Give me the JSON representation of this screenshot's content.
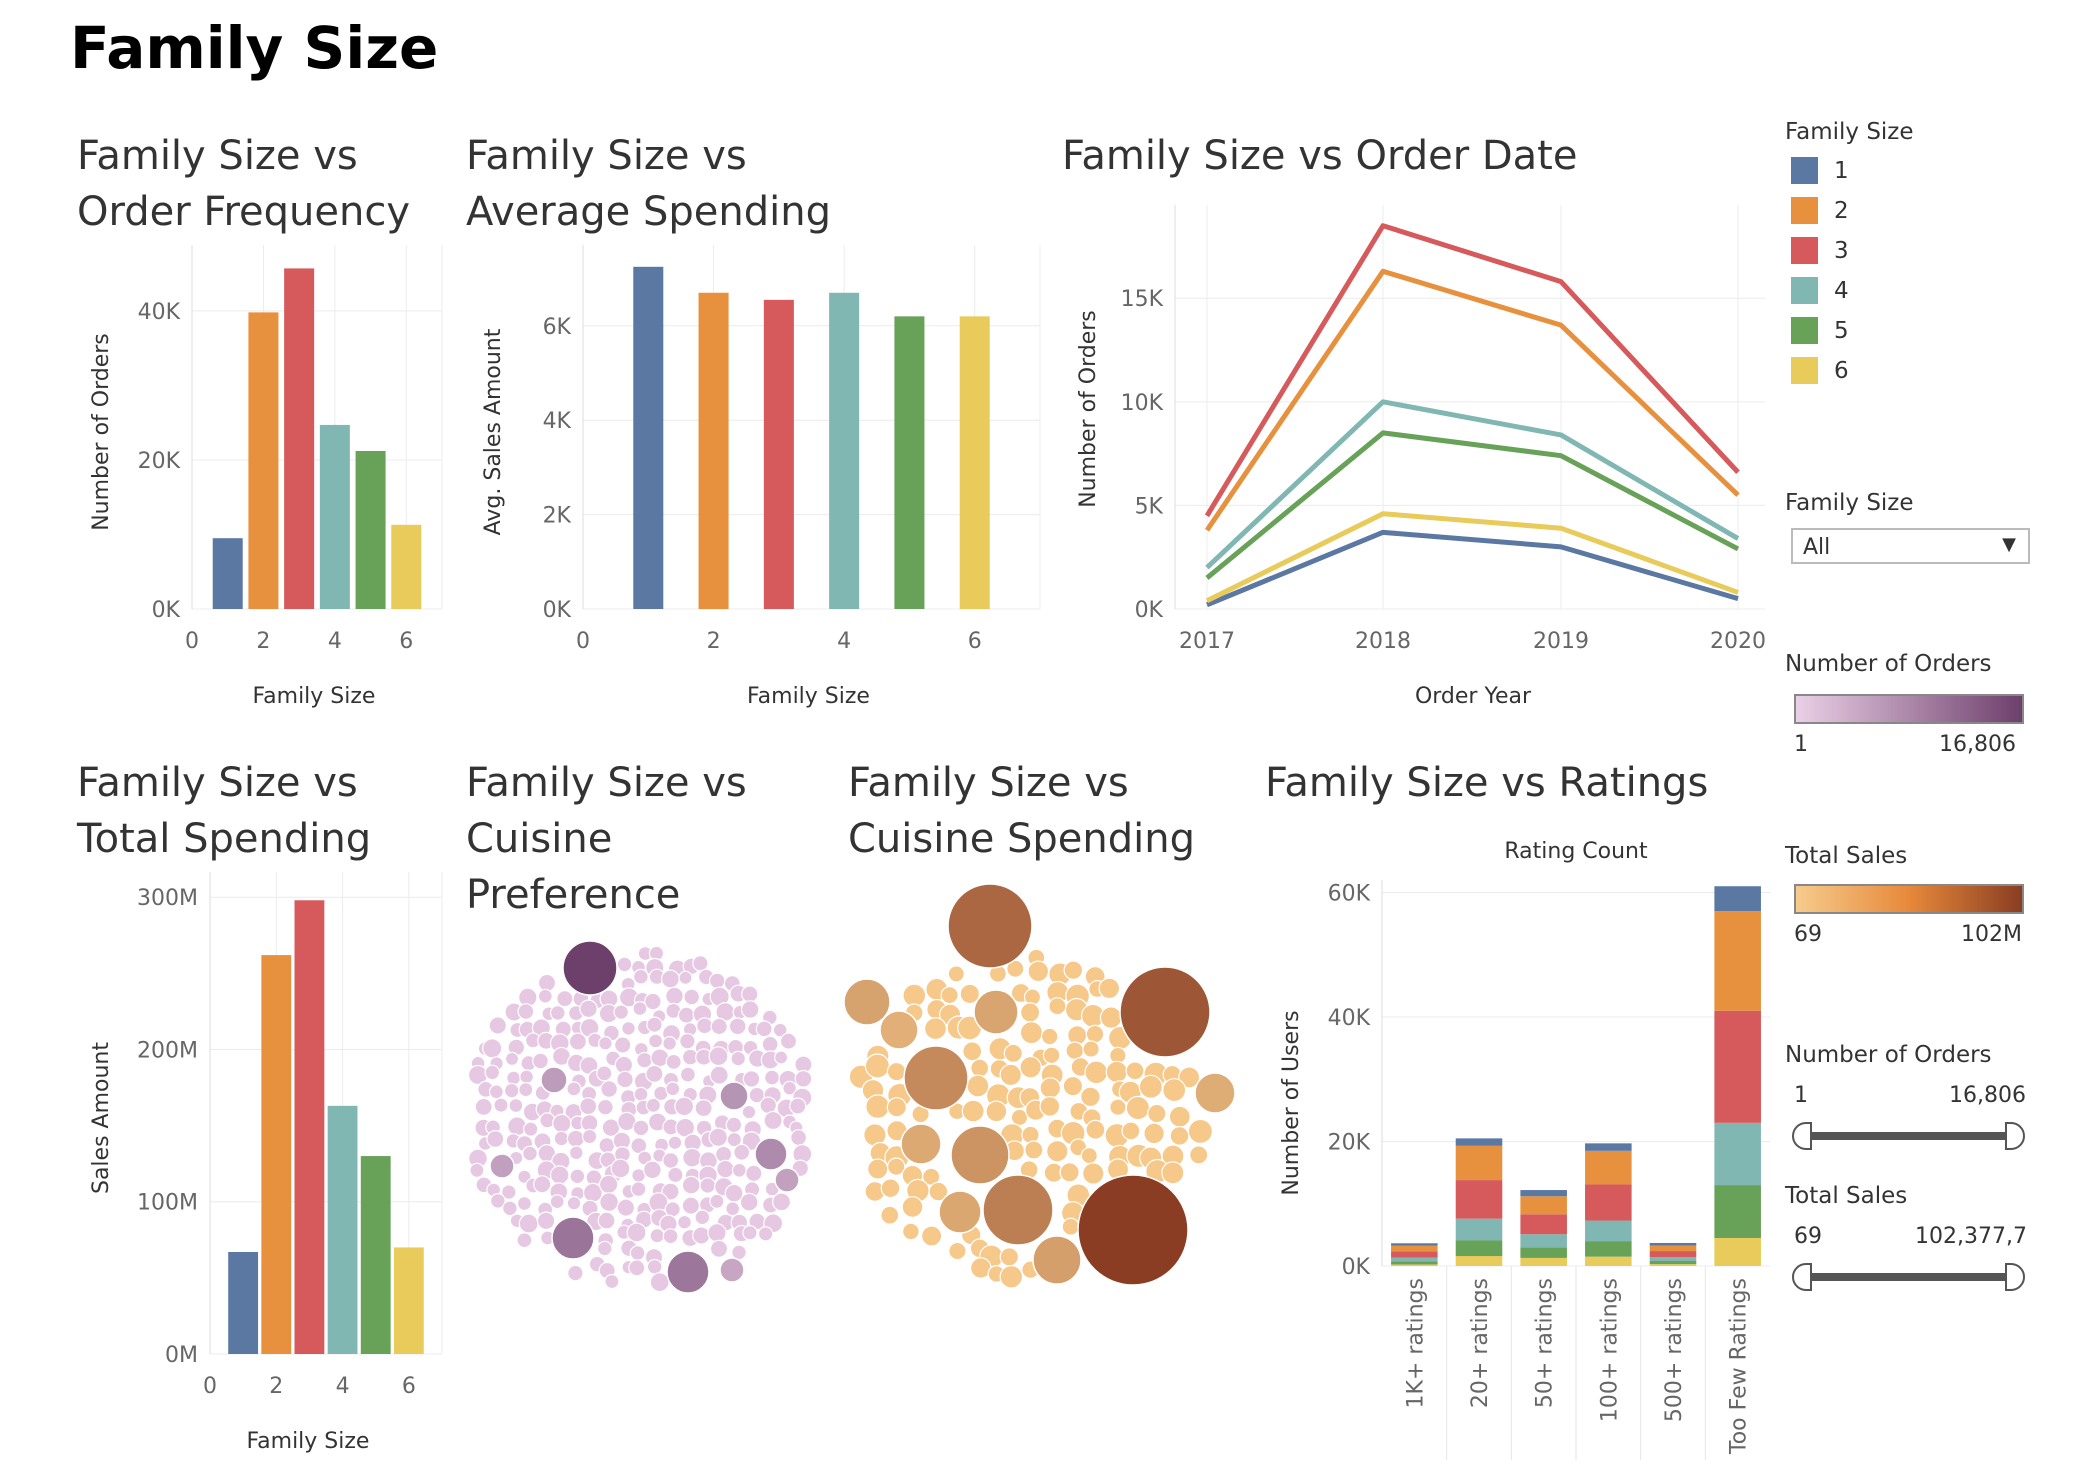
{
  "dashboard_title": "Family Size",
  "colors": {
    "fs1": "#5b78a3",
    "fs2": "#e7913e",
    "fs3": "#d65a5b",
    "fs4": "#81b7b3",
    "fs5": "#68a158",
    "fs6": "#e8cb5a",
    "grid": "#ececec",
    "axis_text": "#666666"
  },
  "legend": {
    "title": "Family Size",
    "items": [
      "1",
      "2",
      "3",
      "4",
      "5",
      "6"
    ]
  },
  "filter": {
    "title": "Family Size",
    "selected": "All",
    "icon": "chevron-down-icon"
  },
  "num_orders_legend": {
    "title": "Number of Orders",
    "min": "1",
    "max": "16,806"
  },
  "total_sales_legend": {
    "title": "Total Sales",
    "min": "69",
    "max": "102M"
  },
  "num_orders_slider": {
    "title": "Number of Orders",
    "min": "1",
    "max": "16,806"
  },
  "total_sales_slider": {
    "title": "Total Sales",
    "min": "69",
    "max": "102,377,7․"
  },
  "chart_data": [
    {
      "id": "order_frequency",
      "type": "bar",
      "title": "Family Size vs Order Frequency",
      "xlabel": "Family Size",
      "ylabel": "Number of Orders",
      "x": [
        1,
        2,
        3,
        4,
        5,
        6
      ],
      "values": [
        9500,
        39800,
        45700,
        24700,
        21200,
        11300
      ],
      "xlim": [
        0,
        7
      ],
      "ylim": [
        0,
        47500
      ],
      "xticks": [
        "0",
        "2",
        "4",
        "6"
      ],
      "yticks": [
        "0K",
        "20K",
        "40K"
      ],
      "grid": true
    },
    {
      "id": "average_spending",
      "type": "bar",
      "title": "Family Size vs Average Spending",
      "xlabel": "Family Size",
      "ylabel": "Avg. Sales Amount",
      "x": [
        1,
        2,
        3,
        4,
        5,
        6
      ],
      "values": [
        7250,
        6700,
        6550,
        6700,
        6200,
        6200
      ],
      "xlim": [
        0,
        7
      ],
      "ylim": [
        0,
        7500
      ],
      "xticks": [
        "0",
        "2",
        "4",
        "6"
      ],
      "yticks": [
        "0K",
        "2K",
        "4K",
        "6K"
      ],
      "grid": true
    },
    {
      "id": "order_date",
      "type": "line",
      "title": "Family Size vs Order Date",
      "xlabel": "Order Year",
      "ylabel": "Number of Orders",
      "x": [
        "2017",
        "2018",
        "2019",
        "2020"
      ],
      "series": [
        {
          "name": "1",
          "values": [
            200,
            3700,
            3000,
            500
          ]
        },
        {
          "name": "2",
          "values": [
            3800,
            16300,
            13700,
            5500
          ]
        },
        {
          "name": "3",
          "values": [
            4500,
            18500,
            15800,
            6600
          ]
        },
        {
          "name": "4",
          "values": [
            2000,
            10000,
            8400,
            3400
          ]
        },
        {
          "name": "5",
          "values": [
            1500,
            8500,
            7400,
            2900
          ]
        },
        {
          "name": "6",
          "values": [
            400,
            4600,
            3900,
            800
          ]
        }
      ],
      "ylim": [
        0,
        19500
      ],
      "yticks": [
        "0K",
        "5K",
        "10K",
        "15K"
      ],
      "grid": true
    },
    {
      "id": "total_spending",
      "type": "bar",
      "title": "Family Size vs Total Spending",
      "xlabel": "Family Size",
      "ylabel": "Sales Amount",
      "x": [
        1,
        2,
        3,
        4,
        5,
        6
      ],
      "values": [
        67000000,
        262000000,
        298000000,
        163000000,
        130000000,
        70000000
      ],
      "xlim": [
        0,
        7
      ],
      "ylim": [
        0,
        310000000
      ],
      "xticks": [
        "0",
        "2",
        "4",
        "6"
      ],
      "yticks": [
        "0M",
        "100M",
        "200M",
        "300M"
      ],
      "grid": true
    },
    {
      "id": "cuisine_preference",
      "type": "scatter",
      "title": "Family Size vs Cuisine Preference",
      "bubble_color_by": "Number of Orders",
      "color_range": [
        "#ead0e7",
        "#6d3f6b"
      ],
      "highlighted_bubbles": [
        {
          "value": 16806,
          "r": 27,
          "cx": 590,
          "cy": 968
        },
        {
          "value": 9500,
          "r": 21,
          "cx": 573,
          "cy": 1238
        },
        {
          "value": 9200,
          "r": 21,
          "cx": 688,
          "cy": 1272
        },
        {
          "value": 6500,
          "r": 16,
          "cx": 771,
          "cy": 1154
        },
        {
          "value": 5200,
          "r": 14,
          "cx": 734,
          "cy": 1096
        },
        {
          "value": 4200,
          "r": 13,
          "cx": 554,
          "cy": 1080
        },
        {
          "value": 3600,
          "r": 12,
          "cx": 502,
          "cy": 1166
        },
        {
          "value": 3400,
          "r": 12,
          "cx": 787,
          "cy": 1180
        },
        {
          "value": 2800,
          "r": 12,
          "cx": 732,
          "cy": 1270
        }
      ]
    },
    {
      "id": "cuisine_spending",
      "type": "scatter",
      "title": "Family Size vs Cuisine Spending",
      "bubble_color_by": "Total Sales",
      "color_range": [
        "#f6cb8c",
        "#8a3d22"
      ],
      "highlighted_bubbles": [
        {
          "value": 102000000,
          "r": 55,
          "cx": 1133,
          "cy": 1230
        },
        {
          "value": 82000000,
          "r": 45,
          "cx": 1165,
          "cy": 1012
        },
        {
          "value": 70000000,
          "r": 42,
          "cx": 990,
          "cy": 926
        },
        {
          "value": 52000000,
          "r": 35,
          "cx": 1018,
          "cy": 1210
        },
        {
          "value": 44000000,
          "r": 32,
          "cx": 936,
          "cy": 1078
        },
        {
          "value": 36000000,
          "r": 29,
          "cx": 980,
          "cy": 1155
        },
        {
          "value": 28000000,
          "r": 24,
          "cx": 1057,
          "cy": 1260
        },
        {
          "value": 26000000,
          "r": 23,
          "cx": 867,
          "cy": 1002
        },
        {
          "value": 24000000,
          "r": 22,
          "cx": 996,
          "cy": 1012
        },
        {
          "value": 22000000,
          "r": 21,
          "cx": 960,
          "cy": 1212
        },
        {
          "value": 20000000,
          "r": 20,
          "cx": 921,
          "cy": 1144
        },
        {
          "value": 18000000,
          "r": 20,
          "cx": 1215,
          "cy": 1093
        },
        {
          "value": 16000000,
          "r": 19,
          "cx": 899,
          "cy": 1030
        }
      ]
    },
    {
      "id": "ratings",
      "type": "bar",
      "stacked": true,
      "title": "Family Size vs Ratings",
      "subtitle": "Rating Count",
      "ylabel": "Number of Users",
      "categories": [
        "1K+ ratings",
        "20+ ratings",
        "50+ ratings",
        "100+ ratings",
        "500+ ratings",
        "Too Few Ratings"
      ],
      "series": [
        {
          "name": "1",
          "values": [
            400,
            1200,
            1000,
            1200,
            400,
            4000
          ]
        },
        {
          "name": "2",
          "values": [
            900,
            5500,
            2900,
            5400,
            900,
            16000
          ]
        },
        {
          "name": "3",
          "values": [
            1000,
            6200,
            3200,
            5800,
            1000,
            18000
          ]
        },
        {
          "name": "4",
          "values": [
            600,
            3500,
            2100,
            3300,
            600,
            10000
          ]
        },
        {
          "name": "5",
          "values": [
            500,
            2500,
            1700,
            2500,
            500,
            8500
          ]
        },
        {
          "name": "6",
          "values": [
            250,
            1600,
            1300,
            1500,
            300,
            4500
          ]
        }
      ],
      "ylim": [
        0,
        62000
      ],
      "yticks": [
        "0K",
        "20K",
        "40K",
        "60K"
      ],
      "grid": true
    }
  ]
}
